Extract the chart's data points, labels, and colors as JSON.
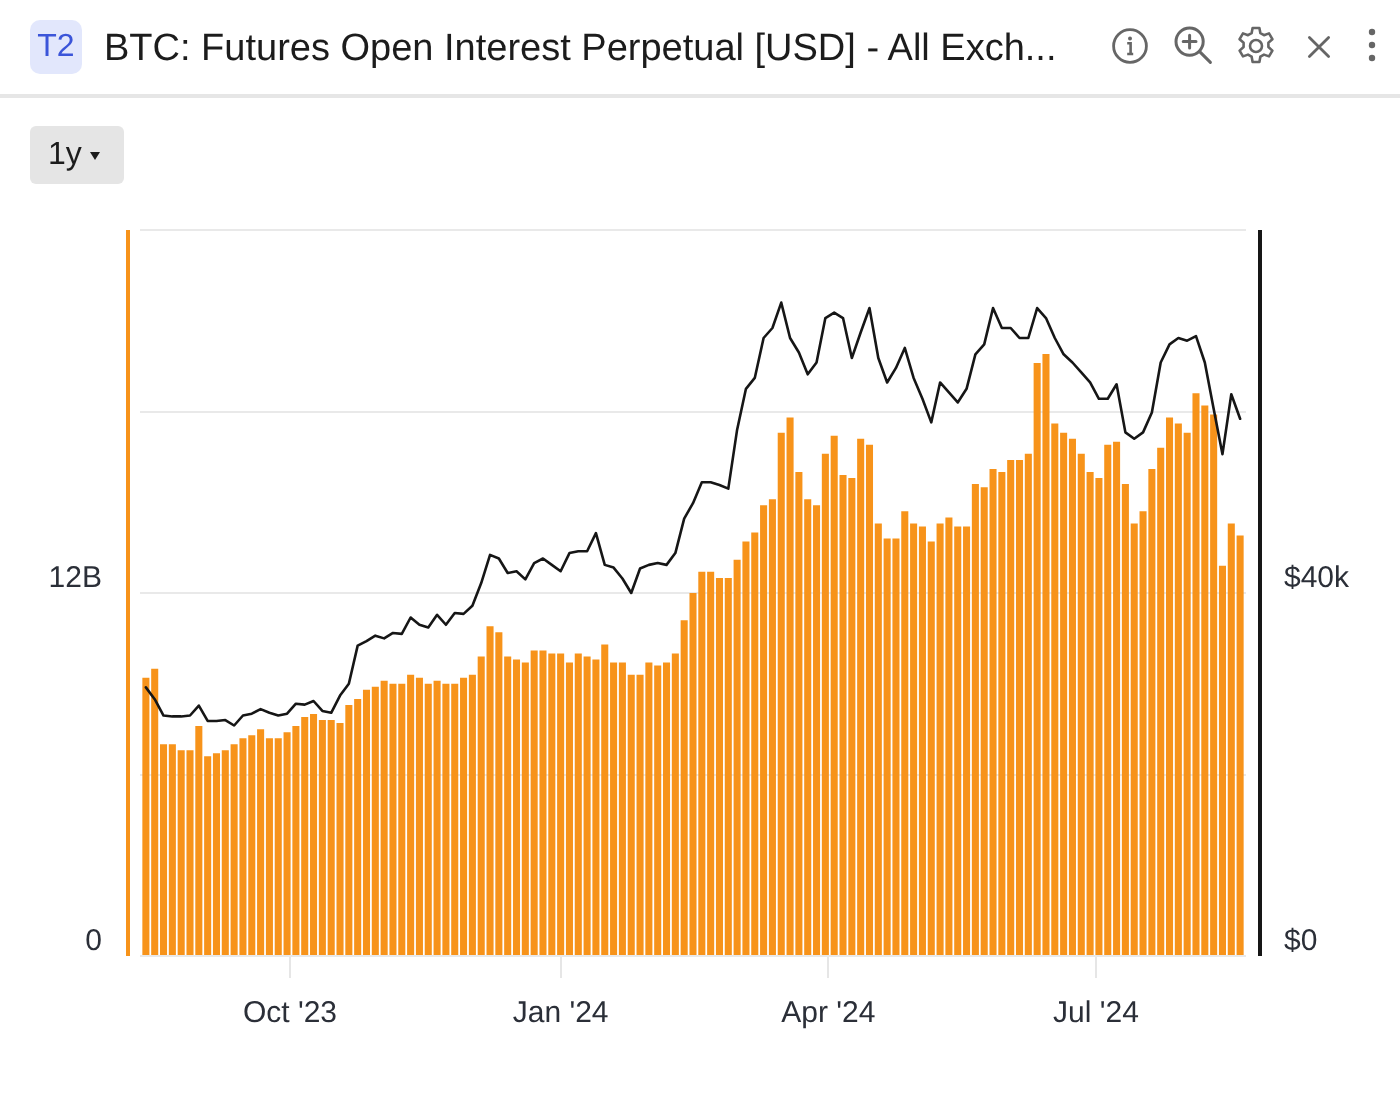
{
  "chart_data": {
    "type": "bar",
    "title": "BTC: Futures Open Interest Perpetual [USD] - All Exch...",
    "annotations": [
      "T2",
      "1y"
    ],
    "x": [
      "2023-08-13",
      "2023-08-16",
      "2023-08-19",
      "2023-08-22",
      "2023-08-25",
      "2023-08-28",
      "2023-08-31",
      "2023-09-03",
      "2023-09-06",
      "2023-09-09",
      "2023-09-12",
      "2023-09-15",
      "2023-09-18",
      "2023-09-21",
      "2023-09-24",
      "2023-09-27",
      "2023-09-30",
      "2023-10-03",
      "2023-10-06",
      "2023-10-09",
      "2023-10-12",
      "2023-10-15",
      "2023-10-18",
      "2023-10-21",
      "2023-10-24",
      "2023-10-27",
      "2023-10-30",
      "2023-11-02",
      "2023-11-05",
      "2023-11-08",
      "2023-11-11",
      "2023-11-14",
      "2023-11-17",
      "2023-11-20",
      "2023-11-23",
      "2023-11-26",
      "2023-11-29",
      "2023-12-02",
      "2023-12-05",
      "2023-12-08",
      "2023-12-11",
      "2023-12-14",
      "2023-12-17",
      "2023-12-20",
      "2023-12-23",
      "2023-12-26",
      "2023-12-29",
      "2024-01-01",
      "2024-01-04",
      "2024-01-07",
      "2024-01-10",
      "2024-01-13",
      "2024-01-16",
      "2024-01-19",
      "2024-01-22",
      "2024-01-25",
      "2024-01-28",
      "2024-01-31",
      "2024-02-03",
      "2024-02-06",
      "2024-02-09",
      "2024-02-12",
      "2024-02-15",
      "2024-02-18",
      "2024-02-21",
      "2024-02-24",
      "2024-02-27",
      "2024-03-01",
      "2024-03-04",
      "2024-03-07",
      "2024-03-10",
      "2024-03-13",
      "2024-03-16",
      "2024-03-19",
      "2024-03-22",
      "2024-03-25",
      "2024-03-28",
      "2024-03-31",
      "2024-04-03",
      "2024-04-06",
      "2024-04-09",
      "2024-04-12",
      "2024-04-15",
      "2024-04-18",
      "2024-04-21",
      "2024-04-24",
      "2024-04-27",
      "2024-04-30",
      "2024-05-03",
      "2024-05-06",
      "2024-05-09",
      "2024-05-12",
      "2024-05-15",
      "2024-05-18",
      "2024-05-21",
      "2024-05-24",
      "2024-05-27",
      "2024-05-30",
      "2024-06-02",
      "2024-06-05",
      "2024-06-08",
      "2024-06-11",
      "2024-06-14",
      "2024-06-17",
      "2024-06-20",
      "2024-06-23",
      "2024-06-26",
      "2024-06-29",
      "2024-07-02",
      "2024-07-05",
      "2024-07-08",
      "2024-07-11",
      "2024-07-14",
      "2024-07-17",
      "2024-07-20",
      "2024-07-23",
      "2024-07-26",
      "2024-07-29",
      "2024-08-01",
      "2024-08-04",
      "2024-08-07",
      "2024-08-10",
      "2024-08-13",
      "2024-08-16",
      "2024-08-19"
    ],
    "series": [
      {
        "color": "#f7931a",
        "values": [
          9.2,
          9.5,
          7.0,
          7.0,
          6.8,
          6.8,
          7.6,
          6.6,
          6.7,
          6.8,
          7.0,
          7.2,
          7.3,
          7.5,
          7.2,
          7.2,
          7.4,
          7.6,
          7.9,
          8.0,
          7.8,
          7.8,
          7.7,
          8.3,
          8.5,
          8.8,
          8.9,
          9.1,
          9.0,
          9.0,
          9.3,
          9.2,
          9.0,
          9.1,
          9.0,
          9.0,
          9.2,
          9.3,
          9.9,
          10.9,
          10.7,
          9.9,
          9.8,
          9.7,
          10.1,
          10.1,
          10.0,
          10.0,
          9.7,
          10.0,
          9.9,
          9.8,
          10.3,
          9.7,
          9.7,
          9.3,
          9.3,
          9.7,
          9.6,
          9.7,
          10.0,
          11.1,
          12.0,
          12.7,
          12.7,
          12.5,
          12.5,
          13.1,
          13.7,
          14.0,
          14.9,
          15.1,
          17.3,
          17.8,
          16.0,
          15.1,
          14.9,
          16.6,
          17.2,
          15.9,
          15.8,
          17.1,
          16.9,
          14.3,
          13.8,
          13.8,
          14.7,
          14.3,
          14.2,
          13.7,
          14.3,
          14.5,
          14.2,
          14.2,
          15.6,
          15.5,
          16.1,
          16.0,
          16.4,
          16.4,
          16.6,
          19.6,
          19.9,
          17.6,
          17.3,
          17.1,
          16.6,
          16.0,
          15.8,
          16.9,
          17.0,
          15.6,
          14.3,
          14.7,
          16.1,
          16.8,
          17.8,
          17.6,
          17.3,
          18.6,
          18.2,
          17.9,
          12.9,
          14.3,
          13.9
        ]
      },
      {
        "type": "line",
        "axis": "y2",
        "color": "#161616",
        "values": [
          29600,
          28300,
          26500,
          26400,
          26400,
          26500,
          27600,
          25900,
          25900,
          26000,
          25400,
          26500,
          26700,
          27200,
          26800,
          26500,
          26700,
          27800,
          27700,
          28100,
          27000,
          26800,
          28700,
          30000,
          34200,
          34700,
          35300,
          35000,
          35600,
          35500,
          37300,
          36500,
          36200,
          37600,
          36500,
          37800,
          37700,
          38600,
          41100,
          44200,
          43800,
          42200,
          42400,
          41500,
          43300,
          43800,
          43100,
          42400,
          44400,
          44600,
          44600,
          46600,
          43100,
          42800,
          41600,
          40000,
          42700,
          43100,
          43300,
          43100,
          44400,
          48200,
          49900,
          52200,
          52200,
          51900,
          51500,
          58000,
          62500,
          63700,
          68100,
          69200,
          72000,
          68100,
          66500,
          64100,
          65400,
          70300,
          70900,
          70300,
          65900,
          68700,
          71400,
          65900,
          63200,
          64800,
          67000,
          63700,
          61400,
          58800,
          63200,
          62100,
          61000,
          62500,
          66300,
          67400,
          71400,
          69200,
          69200,
          68100,
          68100,
          71400,
          70300,
          68100,
          66300,
          65400,
          64300,
          63200,
          61400,
          61400,
          63000,
          57700,
          57000,
          57700,
          59900,
          65400,
          67400,
          68100,
          67800,
          68300,
          65400,
          60300,
          55300,
          61900,
          59200
        ]
      }
    ],
    "xlim": [
      "2023-08-11",
      "2024-08-21"
    ],
    "xticks": [
      {
        "value": "2023-10-01",
        "label": "Oct '23"
      },
      {
        "value": "2024-01-01",
        "label": "Jan '24"
      },
      {
        "value": "2024-04-01",
        "label": "Apr '24"
      },
      {
        "value": "2024-07-01",
        "label": "Jul '24"
      }
    ],
    "ylim": [
      0,
      24
    ],
    "yticks": [
      {
        "value": 0,
        "label": "0"
      },
      {
        "value": 6,
        "label": null
      },
      {
        "value": 12,
        "label": "12B"
      },
      {
        "value": 18,
        "label": null
      },
      {
        "value": 24,
        "label": null
      }
    ],
    "y2lim": [
      0,
      80000
    ],
    "y2ticks": [
      {
        "value": 0,
        "label": "$0"
      },
      {
        "value": 20000,
        "label": null
      },
      {
        "value": 40000,
        "label": "$40k"
      },
      {
        "value": 60000,
        "label": null
      },
      {
        "value": 80000,
        "label": null
      }
    ],
    "grid": "y",
    "marker": "none"
  }
}
